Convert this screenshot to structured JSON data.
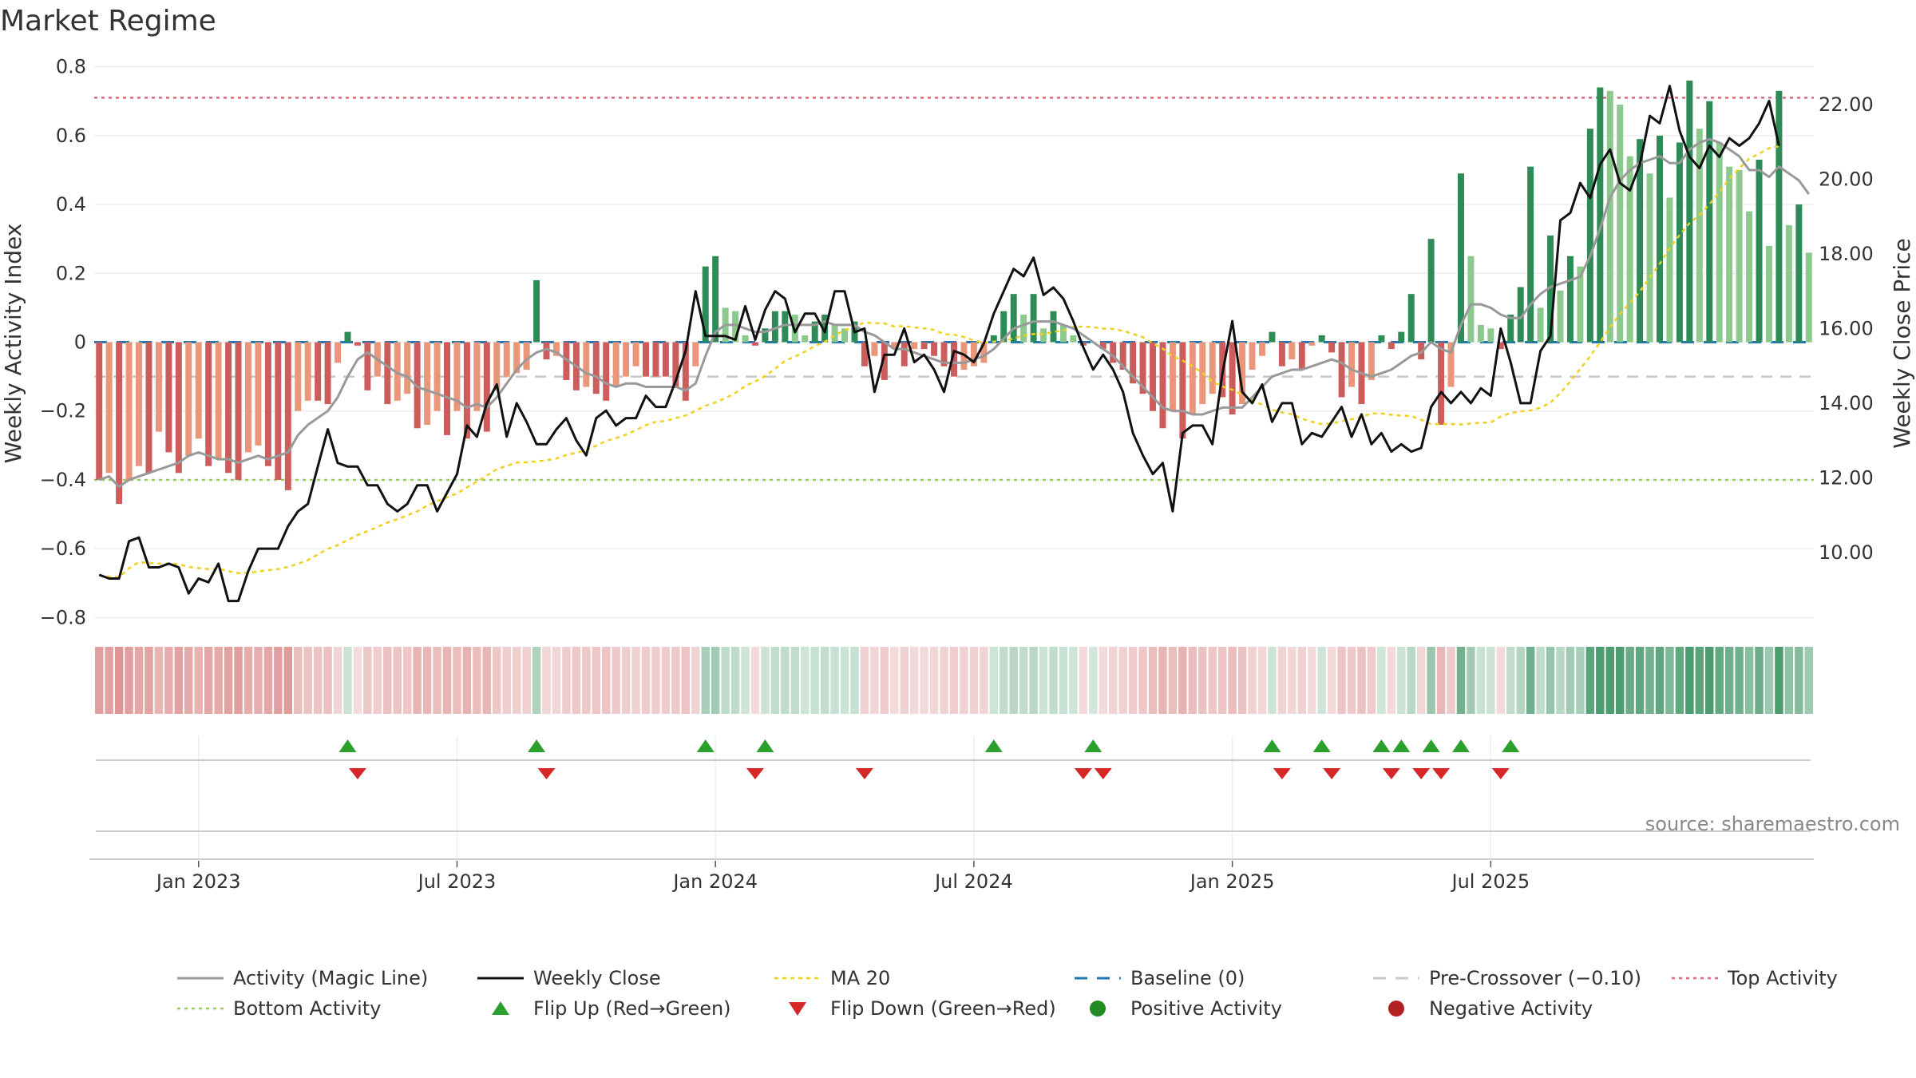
{
  "chart_data": {
    "type": "bar",
    "title": "Market Regime",
    "ylabel": "Weekly Activity Index",
    "y2label": "Weekly Close Price",
    "ylim": [
      -0.82,
      0.82
    ],
    "y2lim": [
      8.07,
      23.2
    ],
    "yticks": [
      "0.8",
      "0.6",
      "0.4",
      "0.2",
      "0",
      "−0.2",
      "−0.4",
      "−0.6",
      "−0.8"
    ],
    "y2ticks": [
      "22.00",
      "20.00",
      "18.00",
      "16.00",
      "14.00",
      "12.00",
      "10.00"
    ],
    "xticks": [
      "Jan 2023",
      "Jul 2023",
      "Jan 2024",
      "Jul 2024",
      "Jan 2025",
      "Jul 2025"
    ],
    "source": "source: sharemaestro.com",
    "grid": true,
    "legend_position": "bottom",
    "colors": {
      "strong_positive": "#2e8b57",
      "weak_positive": "#8cc98c",
      "strong_negative": "#cd5c5c",
      "weak_negative": "#e9967a",
      "magic_line": "#999999",
      "weekly_close": "#111111",
      "ma20": "#f0d020",
      "baseline": "#1f77b4",
      "pre_crossover": "#c8c8c8",
      "top_activity": "#d9667a",
      "bottom_activity": "#9acd5a",
      "flip_up": "#2ca02c",
      "flip_down": "#d62728"
    },
    "reference_lines": {
      "baseline": 0,
      "pre_crossover": -0.1,
      "top_activity": 0.71,
      "bottom_activity": -0.4
    },
    "activity": [
      -0.4,
      -0.38,
      -0.47,
      -0.4,
      -0.36,
      -0.38,
      -0.26,
      -0.32,
      -0.38,
      -0.33,
      -0.28,
      -0.36,
      -0.34,
      -0.38,
      -0.4,
      -0.32,
      -0.3,
      -0.36,
      -0.4,
      -0.43,
      -0.2,
      -0.17,
      -0.17,
      -0.18,
      -0.06,
      0.03,
      -0.01,
      -0.14,
      -0.1,
      -0.18,
      -0.17,
      -0.15,
      -0.25,
      -0.24,
      -0.2,
      -0.27,
      -0.2,
      -0.28,
      -0.2,
      -0.26,
      -0.14,
      -0.1,
      -0.09,
      -0.08,
      0.18,
      -0.05,
      -0.04,
      -0.11,
      -0.14,
      -0.13,
      -0.15,
      -0.17,
      -0.13,
      -0.1,
      -0.07,
      -0.1,
      -0.1,
      -0.1,
      -0.13,
      -0.17,
      -0.07,
      0.22,
      0.25,
      0.1,
      0.09,
      0.02,
      -0.01,
      0.04,
      0.09,
      0.09,
      0.08,
      0.02,
      0.06,
      0.08,
      0.05,
      0.04,
      0.06,
      -0.07,
      -0.04,
      -0.11,
      -0.02,
      -0.07,
      -0.02,
      -0.02,
      -0.04,
      -0.07,
      -0.1,
      -0.08,
      -0.07,
      -0.06,
      0.02,
      0.09,
      0.14,
      0.08,
      0.14,
      0.04,
      0.09,
      0.05,
      0.02,
      -0.01,
      0.0,
      -0.02,
      -0.06,
      -0.08,
      -0.12,
      -0.15,
      -0.2,
      -0.25,
      -0.2,
      -0.28,
      -0.21,
      -0.18,
      -0.15,
      -0.16,
      -0.21,
      -0.18,
      -0.08,
      -0.04,
      0.03,
      -0.07,
      -0.05,
      -0.08,
      -0.01,
      0.02,
      -0.03,
      -0.16,
      -0.13,
      -0.18,
      -0.11,
      0.02,
      -0.02,
      0.03,
      0.14,
      -0.05,
      0.3,
      -0.24,
      -0.13,
      0.49,
      0.25,
      0.05,
      0.04,
      -0.02,
      0.08,
      0.16,
      0.51,
      0.1,
      0.31,
      0.15,
      0.25,
      0.22,
      0.62,
      0.74,
      0.73,
      0.69,
      0.54,
      0.59,
      0.49,
      0.6,
      0.42,
      0.58,
      0.76,
      0.62,
      0.7,
      0.58,
      0.51,
      0.5,
      0.38,
      0.53,
      0.28,
      0.73,
      0.34,
      0.4,
      0.26
    ],
    "magic_line": [
      -0.4,
      -0.39,
      -0.42,
      -0.4,
      -0.39,
      -0.38,
      -0.37,
      -0.36,
      -0.35,
      -0.33,
      -0.32,
      -0.33,
      -0.34,
      -0.34,
      -0.35,
      -0.34,
      -0.33,
      -0.34,
      -0.33,
      -0.32,
      -0.27,
      -0.24,
      -0.22,
      -0.2,
      -0.16,
      -0.1,
      -0.05,
      -0.03,
      -0.05,
      -0.07,
      -0.09,
      -0.1,
      -0.13,
      -0.14,
      -0.15,
      -0.16,
      -0.17,
      -0.19,
      -0.18,
      -0.19,
      -0.16,
      -0.12,
      -0.08,
      -0.05,
      -0.03,
      -0.02,
      -0.03,
      -0.05,
      -0.07,
      -0.09,
      -0.1,
      -0.12,
      -0.13,
      -0.12,
      -0.12,
      -0.13,
      -0.13,
      -0.13,
      -0.13,
      -0.14,
      -0.12,
      -0.04,
      0.03,
      0.05,
      0.05,
      0.04,
      0.03,
      0.03,
      0.04,
      0.05,
      0.05,
      0.05,
      0.05,
      0.06,
      0.05,
      0.05,
      0.05,
      0.03,
      0.02,
      0.0,
      -0.02,
      -0.02,
      -0.03,
      -0.04,
      -0.05,
      -0.06,
      -0.06,
      -0.06,
      -0.05,
      -0.04,
      -0.02,
      0.01,
      0.04,
      0.05,
      0.06,
      0.06,
      0.06,
      0.05,
      0.04,
      0.02,
      0.0,
      -0.02,
      -0.04,
      -0.07,
      -0.1,
      -0.13,
      -0.16,
      -0.19,
      -0.2,
      -0.2,
      -0.21,
      -0.21,
      -0.2,
      -0.19,
      -0.19,
      -0.19,
      -0.16,
      -0.13,
      -0.1,
      -0.09,
      -0.08,
      -0.08,
      -0.07,
      -0.06,
      -0.05,
      -0.06,
      -0.08,
      -0.09,
      -0.1,
      -0.09,
      -0.08,
      -0.06,
      -0.04,
      -0.03,
      0.0,
      -0.02,
      -0.03,
      0.05,
      0.11,
      0.11,
      0.1,
      0.08,
      0.07,
      0.07,
      0.11,
      0.14,
      0.16,
      0.17,
      0.18,
      0.19,
      0.25,
      0.33,
      0.42,
      0.47,
      0.5,
      0.52,
      0.53,
      0.54,
      0.52,
      0.52,
      0.56,
      0.58,
      0.59,
      0.58,
      0.56,
      0.54,
      0.5,
      0.5,
      0.48,
      0.51,
      0.49,
      0.47,
      0.43
    ],
    "weekly_close": [
      9.4,
      9.3,
      9.3,
      10.3,
      10.4,
      9.6,
      9.6,
      9.7,
      9.6,
      8.9,
      9.3,
      9.2,
      9.7,
      8.7,
      8.7,
      9.5,
      10.1,
      10.1,
      10.1,
      10.7,
      11.1,
      11.3,
      12.3,
      13.3,
      12.4,
      12.3,
      12.3,
      11.8,
      11.8,
      11.3,
      11.1,
      11.3,
      11.8,
      11.8,
      11.1,
      11.6,
      12.1,
      13.4,
      13.1,
      14.0,
      14.5,
      13.1,
      14.0,
      13.5,
      12.9,
      12.9,
      13.3,
      13.6,
      13.0,
      12.6,
      13.6,
      13.8,
      13.4,
      13.6,
      13.6,
      14.2,
      13.9,
      13.9,
      14.6,
      15.4,
      17.0,
      15.8,
      15.8,
      15.8,
      15.7,
      16.6,
      15.7,
      16.5,
      17.0,
      16.8,
      15.9,
      16.4,
      16.4,
      15.9,
      17.0,
      17.0,
      15.9,
      16.0,
      14.3,
      15.3,
      15.3,
      16.0,
      15.1,
      15.3,
      14.9,
      14.3,
      15.4,
      15.3,
      15.1,
      15.6,
      16.4,
      17.0,
      17.6,
      17.4,
      17.9,
      16.9,
      17.1,
      16.8,
      16.2,
      15.5,
      14.9,
      15.3,
      14.9,
      14.3,
      13.2,
      12.6,
      12.1,
      12.4,
      11.1,
      13.2,
      13.4,
      13.4,
      12.9,
      14.8,
      16.2,
      14.3,
      14.0,
      14.5,
      13.5,
      14.0,
      14.0,
      12.9,
      13.2,
      13.1,
      13.5,
      13.9,
      13.1,
      13.7,
      12.9,
      13.2,
      12.7,
      12.9,
      12.7,
      12.8,
      13.9,
      14.3,
      14.0,
      14.3,
      14.0,
      14.4,
      14.2,
      16.0,
      15.1,
      14.0,
      14.0,
      15.4,
      15.8,
      18.9,
      19.1,
      19.9,
      19.5,
      20.4,
      20.8,
      19.9,
      19.7,
      20.4,
      21.7,
      21.5,
      22.5,
      21.3,
      20.6,
      20.3,
      20.9,
      20.6,
      21.1,
      20.9,
      21.1,
      21.5,
      22.1,
      20.9
    ]
  },
  "legend": [
    {
      "key": "magic_line",
      "label": "Activity (Magic Line)"
    },
    {
      "key": "weekly_close",
      "label": "Weekly Close"
    },
    {
      "key": "ma20",
      "label": "MA 20"
    },
    {
      "key": "baseline",
      "label": "Baseline (0)"
    },
    {
      "key": "pre_crossover",
      "label": "Pre-Crossover (−0.10)"
    },
    {
      "key": "top_activity",
      "label": "Top Activity"
    },
    {
      "key": "bottom_activity",
      "label": "Bottom Activity"
    },
    {
      "key": "flip_up",
      "label": "Flip Up (Red→Green)"
    },
    {
      "key": "flip_down",
      "label": "Flip Down (Green→Red)"
    },
    {
      "key": "positive_activity",
      "label": "Positive Activity"
    },
    {
      "key": "negative_activity",
      "label": "Negative Activity"
    }
  ]
}
